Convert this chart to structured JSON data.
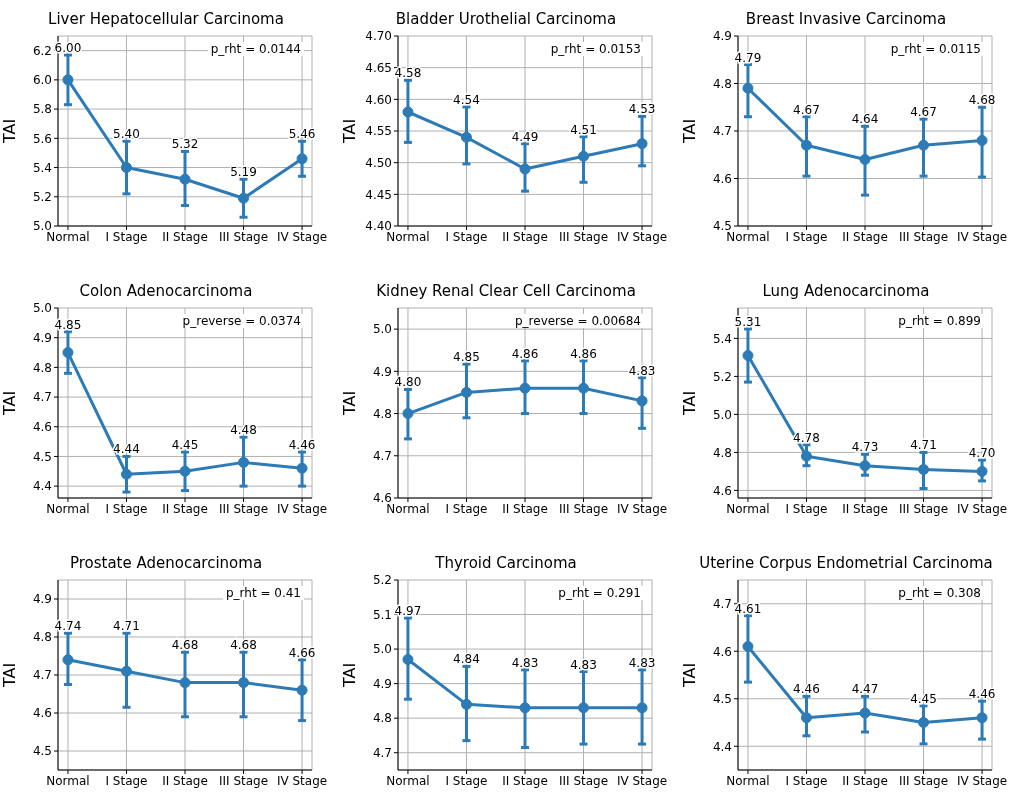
{
  "chart_data": [
    {
      "type": "line",
      "title": "Liver Hepatocellular Carcinoma",
      "ylabel": "TAI",
      "categories": [
        "Normal",
        "I Stage",
        "II Stage",
        "III Stage",
        "IV Stage"
      ],
      "series": [
        {
          "color": "#2c7bb6",
          "values": [
            6.0,
            5.4,
            5.32,
            5.19,
            5.46
          ],
          "value_labels": [
            "6.00",
            "5.40",
            "5.32",
            "5.19",
            "5.46"
          ],
          "errors": [
            [
              5.83,
              6.17
            ],
            [
              5.22,
              5.58
            ],
            [
              5.14,
              5.51
            ],
            [
              5.06,
              5.32
            ],
            [
              5.34,
              5.58
            ]
          ]
        }
      ],
      "ylim": [
        5.0,
        6.3
      ],
      "yticks": [
        {
          "value": 5.0,
          "label": "5.0"
        },
        5.2,
        5.4,
        5.6,
        5.8,
        {
          "value": 6.0,
          "label": "6.0"
        },
        6.2
      ],
      "grid": true,
      "marker": "circle",
      "line_style": "solid",
      "annotations": [
        "p_rht = 0.0144"
      ]
    },
    {
      "type": "line",
      "title": "Bladder Urothelial Carcinoma",
      "ylabel": "TAI",
      "categories": [
        "Normal",
        "I Stage",
        "II Stage",
        "III Stage",
        "IV Stage"
      ],
      "series": [
        {
          "color": "#2c7bb6",
          "values": [
            4.58,
            4.54,
            4.49,
            4.51,
            4.53
          ],
          "value_labels": [
            "4.58",
            "4.54",
            "4.49",
            "4.51",
            "4.53"
          ],
          "errors": [
            [
              4.532,
              4.63
            ],
            [
              4.498,
              4.588
            ],
            [
              4.455,
              4.53
            ],
            [
              4.469,
              4.541
            ],
            [
              4.495,
              4.573
            ]
          ]
        }
      ],
      "ylim": [
        4.4,
        4.7
      ],
      "yticks": [
        {
          "value": 4.4,
          "label": "4.40"
        },
        4.45,
        {
          "value": 4.5,
          "label": "4.50"
        },
        4.55,
        {
          "value": 4.6,
          "label": "4.60"
        },
        4.65,
        {
          "value": 4.7,
          "label": "4.70"
        }
      ],
      "grid": true,
      "marker": "circle",
      "line_style": "solid",
      "annotations": [
        "p_rht = 0.0153"
      ]
    },
    {
      "type": "line",
      "title": "Breast Invasive Carcinoma",
      "ylabel": "TAI",
      "categories": [
        "Normal",
        "I Stage",
        "II Stage",
        "III Stage",
        "IV Stage"
      ],
      "series": [
        {
          "color": "#2c7bb6",
          "values": [
            4.79,
            4.67,
            4.64,
            4.67,
            4.68
          ],
          "value_labels": [
            "4.79",
            "4.67",
            "4.64",
            "4.67",
            "4.68"
          ],
          "errors": [
            [
              4.73,
              4.84
            ],
            [
              4.605,
              4.73
            ],
            [
              4.565,
              4.71
            ],
            [
              4.605,
              4.725
            ],
            [
              4.603,
              4.75
            ]
          ]
        }
      ],
      "ylim": [
        4.5,
        4.9
      ],
      "yticks": [
        4.5,
        4.6,
        4.7,
        4.8,
        4.9
      ],
      "grid": true,
      "marker": "circle",
      "line_style": "solid",
      "annotations": [
        "p_rht = 0.0115"
      ]
    },
    {
      "type": "line",
      "title": "Colon Adenocarcinoma",
      "ylabel": "TAI",
      "categories": [
        "Normal",
        "I Stage",
        "II Stage",
        "III Stage",
        "IV Stage"
      ],
      "series": [
        {
          "color": "#2c7bb6",
          "values": [
            4.85,
            4.44,
            4.45,
            4.48,
            4.46
          ],
          "value_labels": [
            "4.85",
            "4.44",
            "4.45",
            "4.48",
            "4.46"
          ],
          "errors": [
            [
              4.78,
              4.92
            ],
            [
              4.38,
              4.5
            ],
            [
              4.385,
              4.515
            ],
            [
              4.4,
              4.565
            ],
            [
              4.4,
              4.515
            ]
          ]
        }
      ],
      "ylim": [
        4.36,
        5.0
      ],
      "yticks": [
        4.4,
        4.5,
        4.6,
        4.7,
        4.8,
        4.9,
        {
          "value": 5.0,
          "label": "5.0"
        }
      ],
      "grid": true,
      "marker": "circle",
      "line_style": "solid",
      "annotations": [
        "p_reverse = 0.0374"
      ]
    },
    {
      "type": "line",
      "title": "Kidney Renal Clear Cell Carcinoma",
      "ylabel": "TAI",
      "categories": [
        "Normal",
        "I Stage",
        "II Stage",
        "III Stage",
        "IV Stage"
      ],
      "series": [
        {
          "color": "#2c7bb6",
          "values": [
            4.8,
            4.85,
            4.86,
            4.86,
            4.83
          ],
          "value_labels": [
            "4.80",
            "4.85",
            "4.86",
            "4.86",
            "4.83"
          ],
          "errors": [
            [
              4.74,
              4.857
            ],
            [
              4.79,
              4.917
            ],
            [
              4.8,
              4.925
            ],
            [
              4.8,
              4.925
            ],
            [
              4.765,
              4.885
            ]
          ]
        }
      ],
      "ylim": [
        4.6,
        5.05
      ],
      "yticks": [
        4.6,
        4.7,
        4.8,
        4.9,
        {
          "value": 5.0,
          "label": "5.0"
        }
      ],
      "grid": true,
      "marker": "circle",
      "line_style": "solid",
      "annotations": [
        "p_reverse = 0.00684"
      ]
    },
    {
      "type": "line",
      "title": "Lung Adenocarcinoma",
      "ylabel": "TAI",
      "categories": [
        "Normal",
        "I Stage",
        "II Stage",
        "III Stage",
        "IV Stage"
      ],
      "series": [
        {
          "color": "#2c7bb6",
          "values": [
            5.31,
            4.78,
            4.73,
            4.71,
            4.7
          ],
          "value_labels": [
            "5.31",
            "4.78",
            "4.73",
            "4.71",
            "4.70"
          ],
          "errors": [
            [
              5.17,
              5.45
            ],
            [
              4.73,
              4.84
            ],
            [
              4.68,
              4.79
            ],
            [
              4.61,
              4.8
            ],
            [
              4.65,
              4.76
            ]
          ]
        }
      ],
      "ylim": [
        4.56,
        5.56
      ],
      "yticks": [
        4.6,
        4.8,
        {
          "value": 5.0,
          "label": "5.0"
        },
        5.2,
        5.4
      ],
      "grid": true,
      "marker": "circle",
      "line_style": "solid",
      "annotations": [
        "p_rht = 0.899"
      ]
    },
    {
      "type": "line",
      "title": "Prostate Adenocarcinoma",
      "ylabel": "TAI",
      "categories": [
        "Normal",
        "I Stage",
        "II Stage",
        "III Stage",
        "IV Stage"
      ],
      "series": [
        {
          "color": "#2c7bb6",
          "values": [
            4.74,
            4.71,
            4.68,
            4.68,
            4.66
          ],
          "value_labels": [
            "4.74",
            "4.71",
            "4.68",
            "4.68",
            "4.66"
          ],
          "errors": [
            [
              4.675,
              4.81
            ],
            [
              4.615,
              4.81
            ],
            [
              4.59,
              4.76
            ],
            [
              4.59,
              4.76
            ],
            [
              4.58,
              4.74
            ]
          ]
        }
      ],
      "ylim": [
        4.45,
        4.95
      ],
      "yticks": [
        4.5,
        4.6,
        4.7,
        4.8,
        4.9
      ],
      "grid": true,
      "marker": "circle",
      "line_style": "solid",
      "annotations": [
        "p_rht = 0.41"
      ]
    },
    {
      "type": "line",
      "title": "Thyroid Carcinoma",
      "ylabel": "TAI",
      "categories": [
        "Normal",
        "I Stage",
        "II Stage",
        "III Stage",
        "IV Stage"
      ],
      "series": [
        {
          "color": "#2c7bb6",
          "values": [
            4.97,
            4.84,
            4.83,
            4.83,
            4.83
          ],
          "value_labels": [
            "4.97",
            "4.84",
            "4.83",
            "4.83",
            "4.83"
          ],
          "errors": [
            [
              4.855,
              5.09
            ],
            [
              4.735,
              4.95
            ],
            [
              4.715,
              4.94
            ],
            [
              4.725,
              4.935
            ],
            [
              4.725,
              4.94
            ]
          ]
        }
      ],
      "ylim": [
        4.65,
        5.2
      ],
      "yticks": [
        4.7,
        4.8,
        4.9,
        {
          "value": 5.0,
          "label": "5.0"
        },
        5.1,
        5.2
      ],
      "grid": true,
      "marker": "circle",
      "line_style": "solid",
      "annotations": [
        "p_rht = 0.291"
      ]
    },
    {
      "type": "line",
      "title": "Uterine Corpus Endometrial Carcinoma",
      "ylabel": "TAI",
      "categories": [
        "Normal",
        "I Stage",
        "II Stage",
        "III Stage",
        "IV Stage"
      ],
      "series": [
        {
          "color": "#2c7bb6",
          "values": [
            4.61,
            4.46,
            4.47,
            4.45,
            4.46
          ],
          "value_labels": [
            "4.61",
            "4.46",
            "4.47",
            "4.45",
            "4.46"
          ],
          "errors": [
            [
              4.535,
              4.675
            ],
            [
              4.422,
              4.505
            ],
            [
              4.43,
              4.505
            ],
            [
              4.405,
              4.485
            ],
            [
              4.415,
              4.495
            ]
          ]
        }
      ],
      "ylim": [
        4.35,
        4.75
      ],
      "yticks": [
        4.4,
        4.5,
        4.6,
        4.7
      ],
      "grid": true,
      "marker": "circle",
      "line_style": "solid",
      "annotations": [
        "p_rht = 0.308"
      ]
    }
  ]
}
